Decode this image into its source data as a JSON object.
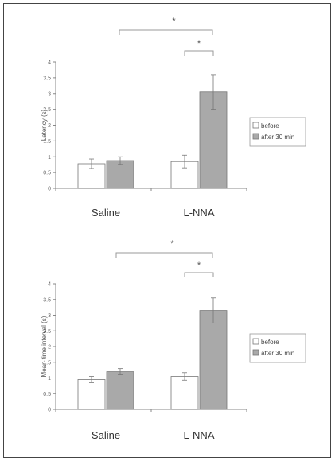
{
  "chart_data": [
    {
      "type": "bar",
      "ylabel": "Latency (s)",
      "ylim": [
        0,
        4
      ],
      "yticks": [
        "0",
        "0.5",
        "1",
        "1.5",
        "2",
        "2.5",
        "3",
        "3.5",
        "4"
      ],
      "categories": [
        "Saline",
        "L-NNA"
      ],
      "series": [
        {
          "name": "before",
          "color": "#ffffff",
          "values": [
            0.78,
            0.85
          ],
          "errors": [
            0.15,
            0.2
          ]
        },
        {
          "name": "after 30 min",
          "color": "#a9a9a9",
          "values": [
            0.88,
            3.05
          ],
          "errors": [
            0.12,
            0.55
          ]
        }
      ],
      "significance": [
        {
          "label": "*",
          "scope": "between groups"
        },
        {
          "label": "*",
          "scope": "within L-NNA"
        }
      ],
      "legend": "right"
    },
    {
      "type": "bar",
      "ylabel": "Mean time interval (s)",
      "ylim": [
        0,
        4
      ],
      "yticks": [
        "0",
        "0.5",
        "1",
        "1.5",
        "2",
        "2.5",
        "3",
        "3.5",
        "4"
      ],
      "categories": [
        "Saline",
        "L-NNA"
      ],
      "series": [
        {
          "name": "before",
          "color": "#ffffff",
          "values": [
            0.95,
            1.05
          ],
          "errors": [
            0.1,
            0.12
          ]
        },
        {
          "name": "after 30 min",
          "color": "#a9a9a9",
          "values": [
            1.2,
            3.15
          ],
          "errors": [
            0.1,
            0.4
          ]
        }
      ],
      "significance": [
        {
          "label": "*",
          "scope": "between groups"
        },
        {
          "label": "*",
          "scope": "within L-NNA"
        }
      ],
      "legend": "right"
    }
  ]
}
